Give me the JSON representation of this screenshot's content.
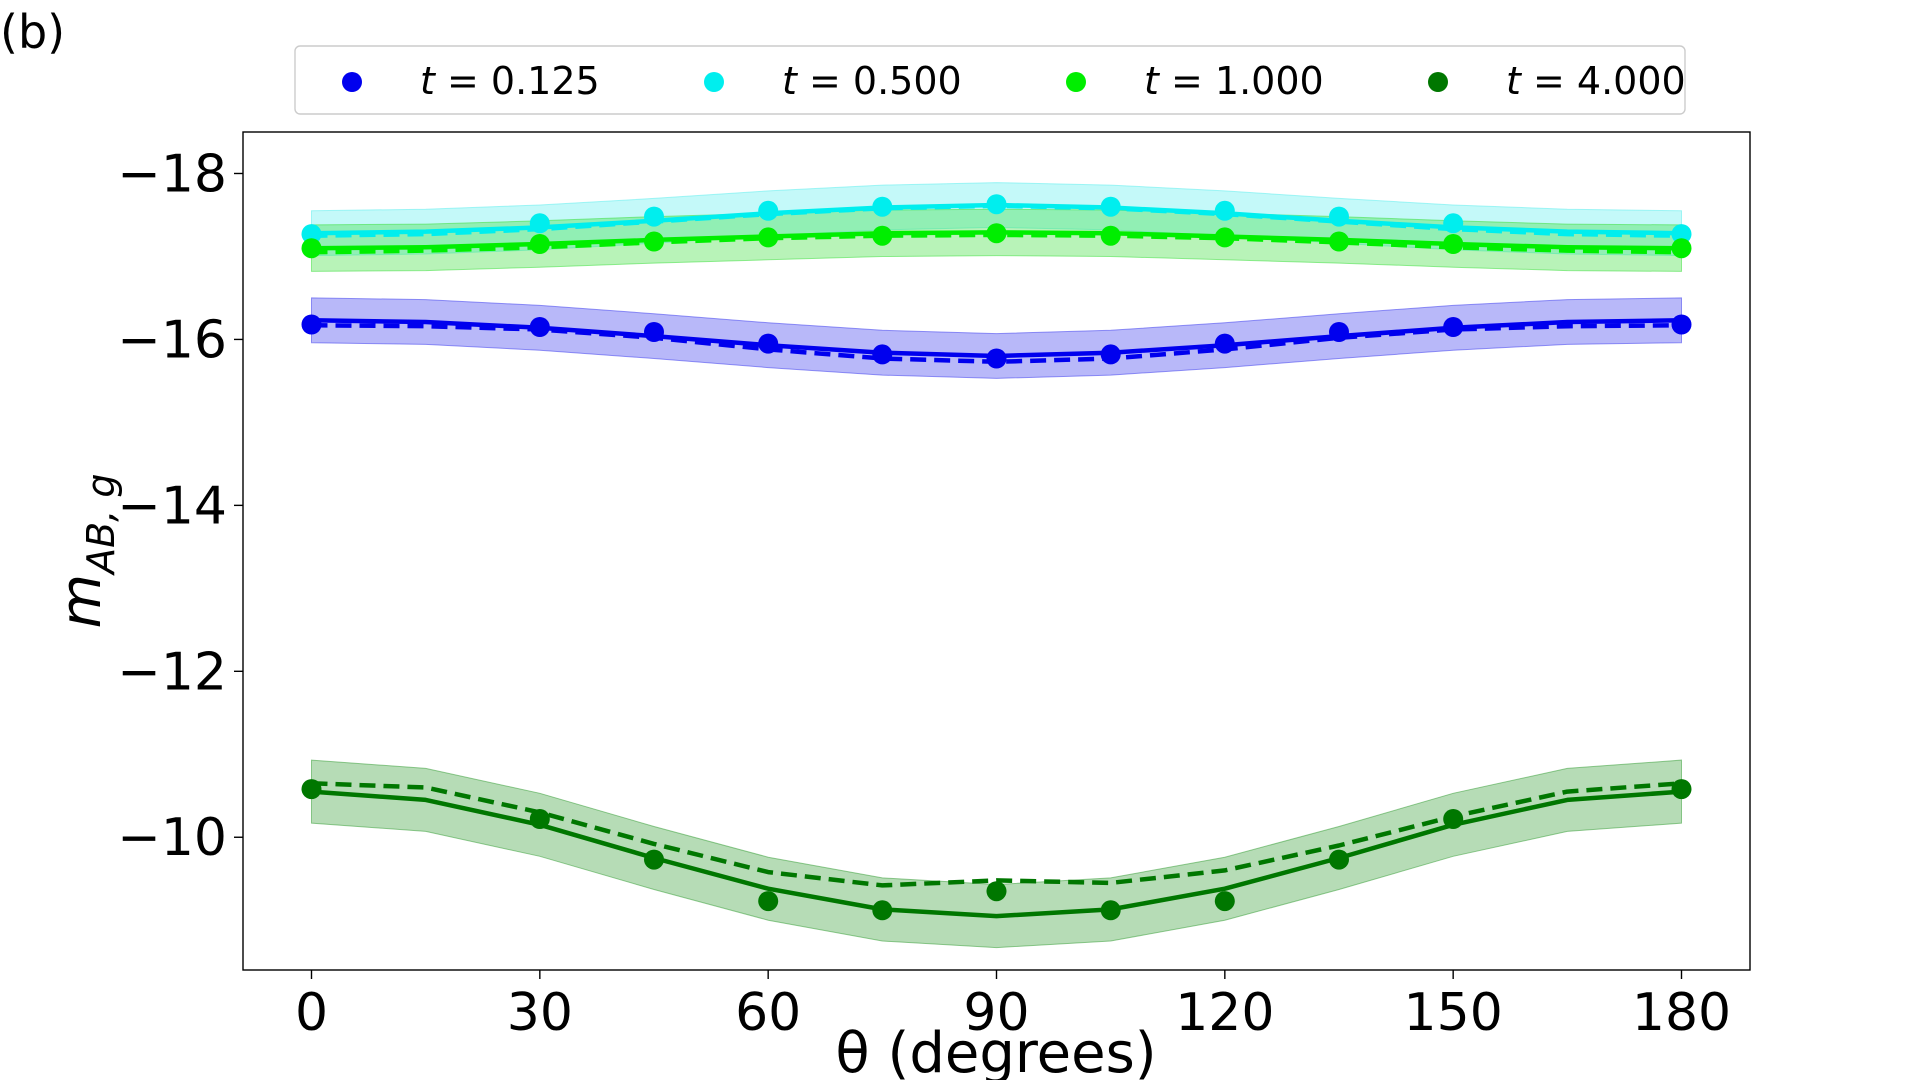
{
  "panel_label": "(b)",
  "chart_data": {
    "type": "line",
    "title": "",
    "xlabel": "θ (degrees)",
    "ylabel": "m_{AB,g}",
    "ylabel_main": "m",
    "ylabel_sub": "AB, g",
    "xlim": [
      -9,
      189
    ],
    "ylim": [
      -8.4,
      -18.5
    ],
    "y_inverted": true,
    "grid": false,
    "legend_position": "top-center",
    "x_ticks": [
      0,
      30,
      60,
      90,
      120,
      150,
      180
    ],
    "x_tick_labels": [
      "0",
      "30",
      "60",
      "90",
      "120",
      "150",
      "180"
    ],
    "y_ticks": [
      -18,
      -16,
      -14,
      -12,
      -10
    ],
    "y_tick_labels": [
      "−18",
      "−16",
      "−14",
      "−12",
      "−10"
    ],
    "points_x": [
      0,
      30,
      45,
      60,
      75,
      90,
      105,
      120,
      135,
      150,
      180
    ],
    "curve_x": [
      0,
      15,
      30,
      45,
      60,
      75,
      90,
      105,
      120,
      135,
      150,
      165,
      180
    ],
    "series": [
      {
        "name": "t = 0.125",
        "legend_t": "t",
        "legend_value": "0.125",
        "color": "#0000ee",
        "band_color": "#3333ee",
        "points": [
          -16.18,
          -16.15,
          -16.09,
          -15.95,
          -15.82,
          -15.77,
          -15.82,
          -15.95,
          -16.09,
          -16.15,
          -16.18
        ],
        "solid": [
          -16.23,
          -16.21,
          -16.14,
          -16.04,
          -15.93,
          -15.84,
          -15.8,
          -15.84,
          -15.93,
          -16.04,
          -16.14,
          -16.21,
          -16.23
        ],
        "dashed": [
          -16.17,
          -16.16,
          -16.12,
          -16.02,
          -15.88,
          -15.77,
          -15.73,
          -15.77,
          -15.88,
          -16.02,
          -16.12,
          -16.16,
          -16.17
        ],
        "band_upper": [
          -16.5,
          -16.48,
          -16.41,
          -16.31,
          -16.2,
          -16.11,
          -16.07,
          -16.11,
          -16.2,
          -16.31,
          -16.41,
          -16.48,
          -16.5
        ],
        "band_lower": [
          -15.96,
          -15.94,
          -15.87,
          -15.77,
          -15.66,
          -15.57,
          -15.53,
          -15.57,
          -15.66,
          -15.77,
          -15.87,
          -15.94,
          -15.96
        ]
      },
      {
        "name": "t = 0.500",
        "legend_t": "t",
        "legend_value": "0.500",
        "color": "#00eeee",
        "band_color": "#55eeee",
        "points": [
          -17.27,
          -17.4,
          -17.48,
          -17.55,
          -17.6,
          -17.63,
          -17.6,
          -17.55,
          -17.48,
          -17.4,
          -17.27
        ],
        "solid": [
          -17.28,
          -17.3,
          -17.35,
          -17.43,
          -17.52,
          -17.59,
          -17.62,
          -17.59,
          -17.52,
          -17.43,
          -17.35,
          -17.3,
          -17.28
        ],
        "dashed": [
          -17.25,
          -17.27,
          -17.33,
          -17.42,
          -17.51,
          -17.58,
          -17.61,
          -17.58,
          -17.51,
          -17.42,
          -17.33,
          -17.27,
          -17.25
        ],
        "band_upper": [
          -17.55,
          -17.57,
          -17.62,
          -17.7,
          -17.79,
          -17.86,
          -17.89,
          -17.86,
          -17.79,
          -17.7,
          -17.62,
          -17.57,
          -17.55
        ],
        "band_lower": [
          -17.01,
          -17.03,
          -17.08,
          -17.16,
          -17.25,
          -17.32,
          -17.35,
          -17.32,
          -17.25,
          -17.16,
          -17.08,
          -17.03,
          -17.01
        ]
      },
      {
        "name": "t = 1.000",
        "legend_t": "t",
        "legend_value": "1.000",
        "color": "#00ee00",
        "band_color": "#33dd33",
        "points": [
          -17.1,
          -17.15,
          -17.18,
          -17.23,
          -17.25,
          -17.28,
          -17.25,
          -17.23,
          -17.18,
          -17.15,
          -17.1
        ],
        "solid": [
          -17.1,
          -17.11,
          -17.15,
          -17.2,
          -17.24,
          -17.28,
          -17.29,
          -17.28,
          -17.24,
          -17.2,
          -17.15,
          -17.11,
          -17.1
        ],
        "dashed": [
          -17.05,
          -17.07,
          -17.11,
          -17.17,
          -17.22,
          -17.25,
          -17.26,
          -17.25,
          -17.22,
          -17.17,
          -17.11,
          -17.07,
          -17.05
        ],
        "band_upper": [
          -17.38,
          -17.39,
          -17.43,
          -17.48,
          -17.52,
          -17.56,
          -17.57,
          -17.56,
          -17.52,
          -17.48,
          -17.43,
          -17.39,
          -17.38
        ],
        "band_lower": [
          -16.82,
          -16.83,
          -16.87,
          -16.92,
          -16.96,
          -17.0,
          -17.01,
          -17.0,
          -16.96,
          -16.92,
          -16.87,
          -16.83,
          -16.82
        ]
      },
      {
        "name": "t = 4.000",
        "legend_t": "t",
        "legend_value": "4.000",
        "color": "#007700",
        "band_color": "#2e9a2e",
        "points": [
          -10.58,
          -10.22,
          -9.73,
          -9.23,
          -9.12,
          -9.35,
          -9.12,
          -9.23,
          -9.73,
          -10.22,
          -10.58
        ],
        "solid": [
          -10.55,
          -10.45,
          -10.15,
          -9.75,
          -9.38,
          -9.13,
          -9.05,
          -9.13,
          -9.38,
          -9.75,
          -10.15,
          -10.45,
          -10.55
        ],
        "dashed": [
          -10.65,
          -10.6,
          -10.3,
          -9.92,
          -9.58,
          -9.42,
          -9.48,
          -9.45,
          -9.6,
          -9.9,
          -10.25,
          -10.55,
          -10.65
        ],
        "band_upper": [
          -10.93,
          -10.83,
          -10.53,
          -10.13,
          -9.76,
          -9.51,
          -9.43,
          -9.51,
          -9.76,
          -10.13,
          -10.53,
          -10.83,
          -10.93
        ],
        "band_lower": [
          -10.17,
          -10.07,
          -9.77,
          -9.37,
          -9.0,
          -8.75,
          -8.67,
          -8.75,
          -9.0,
          -9.37,
          -9.77,
          -10.07,
          -10.17
        ]
      }
    ]
  }
}
